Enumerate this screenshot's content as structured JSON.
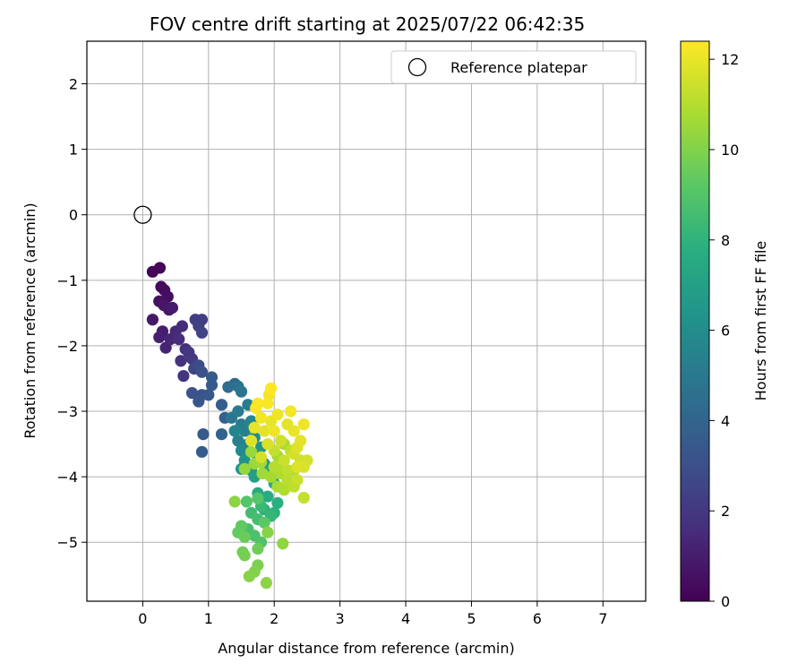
{
  "chart_data": {
    "type": "scatter",
    "title": "FOV centre drift starting at 2025/07/22 06:42:35",
    "xlabel": "Angular distance from reference (arcmin)",
    "ylabel": "Rotation from reference (arcmin)",
    "xlim": [
      -0.85,
      7.65
    ],
    "ylim": [
      -5.9,
      2.65
    ],
    "xticks": [
      0,
      1,
      2,
      3,
      4,
      5,
      6,
      7
    ],
    "yticks": [
      -5,
      -4,
      -3,
      -2,
      -1,
      0,
      1,
      2
    ],
    "grid": true,
    "legend": {
      "position": "top-right",
      "entries": [
        "Reference platepar"
      ]
    },
    "reference_point": {
      "x": 0,
      "y": 0
    },
    "colorbar": {
      "label": "Hours from first FF file",
      "colormap": "viridis",
      "range": [
        0,
        12.4
      ],
      "ticks": [
        0,
        2,
        4,
        6,
        8,
        10,
        12
      ]
    },
    "series": [
      {
        "points": [
          [
            0.15,
            -0.87,
            0.1
          ],
          [
            0.26,
            -0.81,
            0.2
          ],
          [
            0.28,
            -1.1,
            0.3
          ],
          [
            0.33,
            -1.15,
            0.4
          ],
          [
            0.38,
            -1.25,
            0.5
          ],
          [
            0.25,
            -1.32,
            0.6
          ],
          [
            0.32,
            -1.38,
            0.7
          ],
          [
            0.4,
            -1.45,
            0.8
          ],
          [
            0.45,
            -1.42,
            0.9
          ],
          [
            0.15,
            -1.6,
            0.8
          ],
          [
            0.3,
            -1.78,
            1.0
          ],
          [
            0.25,
            -1.87,
            1.1
          ],
          [
            0.35,
            -2.03,
            1.2
          ],
          [
            0.42,
            -1.9,
            1.3
          ],
          [
            0.5,
            -1.78,
            1.4
          ],
          [
            0.6,
            -1.7,
            1.5
          ],
          [
            0.55,
            -1.9,
            1.6
          ],
          [
            0.65,
            -2.05,
            1.7
          ],
          [
            0.58,
            -2.23,
            1.8
          ],
          [
            0.62,
            -2.46,
            1.9
          ],
          [
            0.7,
            -2.1,
            2.0
          ],
          [
            0.75,
            -2.2,
            2.1
          ],
          [
            0.8,
            -1.6,
            2.2
          ],
          [
            0.9,
            -1.6,
            2.3
          ],
          [
            0.85,
            -1.7,
            2.4
          ],
          [
            0.9,
            -1.8,
            2.5
          ],
          [
            0.78,
            -2.35,
            2.6
          ],
          [
            0.85,
            -2.3,
            2.8
          ],
          [
            0.9,
            -2.4,
            3.0
          ],
          [
            0.75,
            -2.72,
            3.1
          ],
          [
            0.9,
            -2.75,
            3.2
          ],
          [
            0.85,
            -2.85,
            3.3
          ],
          [
            1.0,
            -2.75,
            3.4
          ],
          [
            1.05,
            -2.6,
            3.5
          ],
          [
            1.05,
            -2.48,
            3.6
          ],
          [
            0.92,
            -3.35,
            3.5
          ],
          [
            0.9,
            -3.62,
            3.6
          ],
          [
            1.2,
            -2.9,
            3.7
          ],
          [
            1.25,
            -3.1,
            3.8
          ],
          [
            1.2,
            -3.35,
            3.9
          ],
          [
            1.4,
            -2.58,
            4.2
          ],
          [
            1.3,
            -2.63,
            4.4
          ],
          [
            1.45,
            -2.62,
            4.6
          ],
          [
            1.5,
            -2.7,
            4.8
          ],
          [
            1.35,
            -3.1,
            4.9
          ],
          [
            1.45,
            -3.0,
            5.0
          ],
          [
            1.5,
            -3.2,
            5.1
          ],
          [
            1.6,
            -2.9,
            5.2
          ],
          [
            1.55,
            -3.3,
            5.3
          ],
          [
            1.45,
            -3.45,
            5.4
          ],
          [
            1.6,
            -3.5,
            5.5
          ],
          [
            1.4,
            -3.3,
            5.6
          ],
          [
            1.65,
            -3.15,
            5.7
          ],
          [
            1.5,
            -3.6,
            5.8
          ],
          [
            1.7,
            -3.4,
            6.0
          ],
          [
            1.75,
            -3.7,
            6.2
          ],
          [
            1.55,
            -3.75,
            6.3
          ],
          [
            1.8,
            -3.55,
            6.4
          ],
          [
            1.5,
            -3.88,
            6.5
          ],
          [
            1.65,
            -3.9,
            6.6
          ],
          [
            1.85,
            -3.8,
            6.8
          ],
          [
            1.7,
            -4.0,
            7.0
          ],
          [
            1.9,
            -3.95,
            7.2
          ],
          [
            2.0,
            -4.1,
            7.3
          ],
          [
            1.75,
            -4.25,
            7.5
          ],
          [
            1.9,
            -4.3,
            7.6
          ],
          [
            2.05,
            -4.4,
            7.8
          ],
          [
            2.0,
            -4.55,
            7.9
          ],
          [
            1.85,
            -4.5,
            8.0
          ],
          [
            1.95,
            -4.6,
            8.2
          ],
          [
            1.8,
            -4.45,
            8.3
          ],
          [
            1.65,
            -4.55,
            8.5
          ],
          [
            1.75,
            -4.65,
            8.6
          ],
          [
            1.6,
            -4.8,
            8.7
          ],
          [
            1.7,
            -4.9,
            8.8
          ],
          [
            1.8,
            -5.0,
            8.9
          ],
          [
            1.58,
            -4.38,
            9.0
          ],
          [
            1.75,
            -4.33,
            9.1
          ],
          [
            1.85,
            -4.7,
            9.2
          ],
          [
            1.5,
            -4.75,
            9.3
          ],
          [
            1.45,
            -4.85,
            9.4
          ],
          [
            1.55,
            -4.92,
            9.5
          ],
          [
            1.75,
            -5.1,
            9.6
          ],
          [
            1.52,
            -5.15,
            9.7
          ],
          [
            1.55,
            -5.2,
            9.8
          ],
          [
            1.75,
            -5.35,
            9.9
          ],
          [
            1.7,
            -5.45,
            10.0
          ],
          [
            1.62,
            -5.52,
            10.1
          ],
          [
            1.88,
            -5.62,
            10.2
          ],
          [
            2.13,
            -5.02,
            10.3
          ],
          [
            1.4,
            -4.38,
            10.2
          ],
          [
            1.9,
            -4.85,
            10.1
          ],
          [
            1.55,
            -3.88,
            10.4
          ],
          [
            1.65,
            -3.62,
            10.5
          ],
          [
            1.8,
            -3.78,
            10.6
          ],
          [
            2.05,
            -3.68,
            10.7
          ],
          [
            2.15,
            -3.5,
            10.8
          ],
          [
            2.1,
            -3.85,
            10.9
          ],
          [
            2.3,
            -3.9,
            11.0
          ],
          [
            2.2,
            -4.05,
            11.1
          ],
          [
            2.3,
            -4.15,
            11.2
          ],
          [
            2.45,
            -4.32,
            11.3
          ],
          [
            2.35,
            -4.05,
            11.4
          ],
          [
            2.4,
            -3.75,
            11.5
          ],
          [
            2.5,
            -3.75,
            11.6
          ],
          [
            2.45,
            -3.85,
            11.7
          ],
          [
            2.35,
            -3.55,
            11.8
          ],
          [
            2.4,
            -3.45,
            11.9
          ],
          [
            2.3,
            -3.3,
            12.0
          ],
          [
            2.45,
            -3.2,
            12.1
          ],
          [
            2.25,
            -3.0,
            12.2
          ],
          [
            2.1,
            -3.45,
            11.5
          ],
          [
            2.0,
            -3.6,
            11.3
          ],
          [
            1.9,
            -3.5,
            11.7
          ],
          [
            1.85,
            -3.3,
            11.9
          ],
          [
            1.95,
            -3.15,
            12.0
          ],
          [
            2.0,
            -3.3,
            12.1
          ],
          [
            1.8,
            -3.1,
            12.2
          ],
          [
            1.72,
            -2.95,
            12.3
          ],
          [
            1.75,
            -2.88,
            12.4
          ],
          [
            1.9,
            -2.88,
            12.3
          ],
          [
            1.95,
            -2.65,
            12.4
          ],
          [
            1.92,
            -2.75,
            12.2
          ],
          [
            2.05,
            -3.05,
            12.1
          ],
          [
            2.2,
            -3.2,
            11.9
          ],
          [
            1.7,
            -3.25,
            12.0
          ],
          [
            1.65,
            -3.45,
            11.8
          ],
          [
            1.8,
            -3.7,
            11.6
          ],
          [
            2.15,
            -3.75,
            11.4
          ],
          [
            2.25,
            -3.6,
            11.2
          ],
          [
            2.0,
            -3.85,
            11.0
          ],
          [
            2.1,
            -3.95,
            10.9
          ],
          [
            2.2,
            -3.9,
            11.2
          ],
          [
            2.05,
            -4.15,
            10.8
          ],
          [
            2.15,
            -4.2,
            10.9
          ],
          [
            1.95,
            -4.0,
            10.7
          ],
          [
            1.82,
            -3.95,
            10.6
          ],
          [
            1.7,
            -3.8,
            10.5
          ],
          [
            2.3,
            -3.65,
            11.6
          ],
          [
            2.35,
            -3.85,
            11.8
          ]
        ]
      }
    ]
  }
}
